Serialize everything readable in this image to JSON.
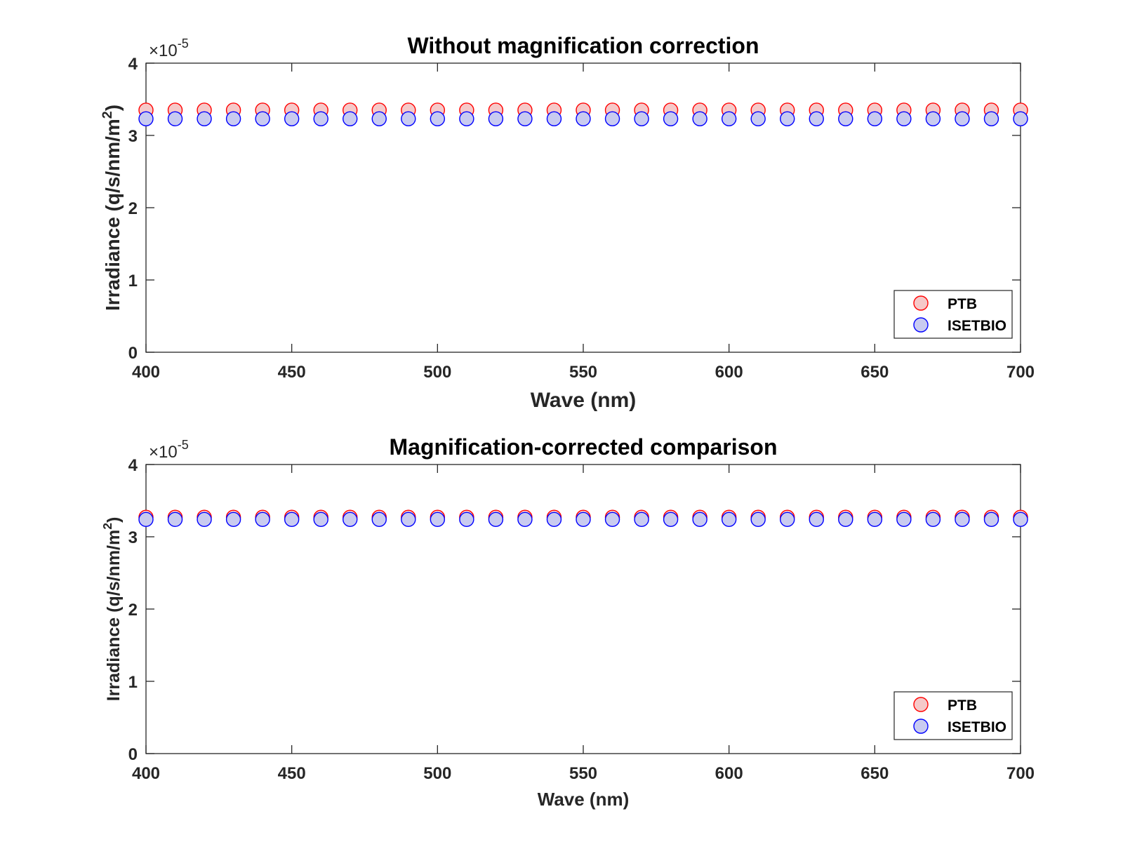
{
  "chart_data": [
    {
      "type": "scatter",
      "title": "Without magnification correction",
      "xlabel": "Wave (nm)",
      "ylabel": "Irradiance (q/s/nm/m",
      "ylabel_sup": "2",
      "ylabel_close": ")",
      "exponent_base": "×10",
      "exponent_power": "-5",
      "xlim": [
        400,
        700
      ],
      "ylim": [
        0,
        4
      ],
      "x_ticks": [
        "400",
        "450",
        "500",
        "550",
        "600",
        "650",
        "700"
      ],
      "y_ticks": [
        "0",
        "1",
        "2",
        "3",
        "4"
      ],
      "x": [
        400,
        410,
        420,
        430,
        440,
        450,
        460,
        470,
        480,
        490,
        500,
        510,
        520,
        530,
        540,
        550,
        560,
        570,
        580,
        590,
        600,
        610,
        620,
        630,
        640,
        650,
        660,
        670,
        680,
        690,
        700
      ],
      "legend_position": "bottom-right",
      "series": [
        {
          "name": "PTB",
          "y": [
            3.35,
            3.35,
            3.35,
            3.35,
            3.35,
            3.35,
            3.35,
            3.35,
            3.35,
            3.35,
            3.35,
            3.35,
            3.35,
            3.35,
            3.35,
            3.35,
            3.35,
            3.35,
            3.35,
            3.35,
            3.35,
            3.35,
            3.35,
            3.35,
            3.35,
            3.35,
            3.35,
            3.35,
            3.35,
            3.35,
            3.35
          ],
          "edge_color": "#ff0000",
          "fill_color": "#f5c9c9"
        },
        {
          "name": "ISETBIO",
          "y": [
            3.23,
            3.23,
            3.23,
            3.23,
            3.23,
            3.23,
            3.23,
            3.23,
            3.23,
            3.23,
            3.23,
            3.23,
            3.23,
            3.23,
            3.23,
            3.23,
            3.23,
            3.23,
            3.23,
            3.23,
            3.23,
            3.23,
            3.23,
            3.23,
            3.23,
            3.23,
            3.23,
            3.23,
            3.23,
            3.23,
            3.23
          ],
          "edge_color": "#0000ff",
          "fill_color": "#c9cbf0"
        }
      ]
    },
    {
      "type": "scatter",
      "title": "Magnification-corrected comparison",
      "xlabel": "Wave (nm)",
      "ylabel": "Irradiance (q/s/nm/m",
      "ylabel_sup": "2",
      "ylabel_close": ")",
      "exponent_base": "×10",
      "exponent_power": "-5",
      "xlim": [
        400,
        700
      ],
      "ylim": [
        0,
        4
      ],
      "x_ticks": [
        "400",
        "450",
        "500",
        "550",
        "600",
        "650",
        "700"
      ],
      "y_ticks": [
        "0",
        "1",
        "2",
        "3",
        "4"
      ],
      "x": [
        400,
        410,
        420,
        430,
        440,
        450,
        460,
        470,
        480,
        490,
        500,
        510,
        520,
        530,
        540,
        550,
        560,
        570,
        580,
        590,
        600,
        610,
        620,
        630,
        640,
        650,
        660,
        670,
        680,
        690,
        700
      ],
      "legend_position": "bottom-right",
      "series": [
        {
          "name": "PTB",
          "y": [
            3.27,
            3.27,
            3.27,
            3.27,
            3.27,
            3.27,
            3.27,
            3.27,
            3.27,
            3.27,
            3.27,
            3.27,
            3.27,
            3.27,
            3.27,
            3.27,
            3.27,
            3.27,
            3.27,
            3.27,
            3.27,
            3.27,
            3.27,
            3.27,
            3.27,
            3.27,
            3.27,
            3.27,
            3.27,
            3.27,
            3.27
          ],
          "edge_color": "#ff0000",
          "fill_color": "#f5c9c9"
        },
        {
          "name": "ISETBIO",
          "y": [
            3.24,
            3.24,
            3.24,
            3.24,
            3.24,
            3.24,
            3.24,
            3.24,
            3.24,
            3.24,
            3.24,
            3.24,
            3.24,
            3.24,
            3.24,
            3.24,
            3.24,
            3.24,
            3.24,
            3.24,
            3.24,
            3.24,
            3.24,
            3.24,
            3.24,
            3.24,
            3.24,
            3.24,
            3.24,
            3.24,
            3.24
          ],
          "edge_color": "#0000ff",
          "fill_color": "#c9cbf0"
        }
      ]
    }
  ]
}
